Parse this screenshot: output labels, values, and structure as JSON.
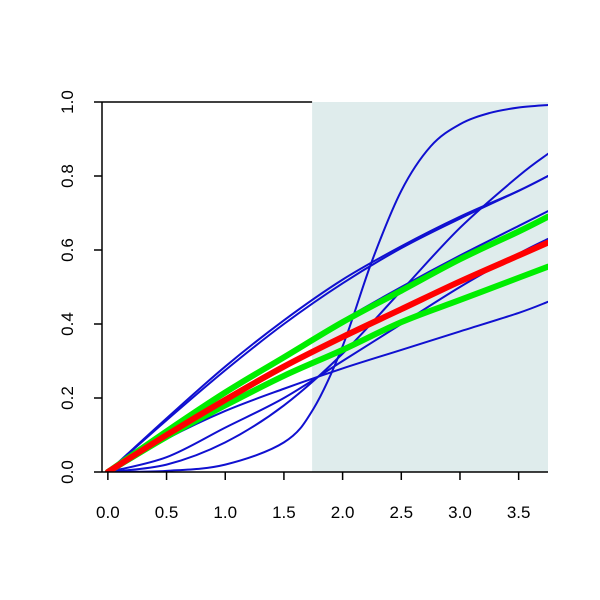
{
  "chart_data": {
    "type": "line",
    "title": "",
    "xlabel": "",
    "ylabel": "",
    "xlim": [
      -0.05,
      3.75
    ],
    "ylim": [
      0,
      1
    ],
    "x_ticks": [
      0.0,
      0.5,
      1.0,
      1.5,
      2.0,
      2.5,
      3.0,
      3.5
    ],
    "x_tick_labels": [
      "0.0",
      "0.5",
      "1.0",
      "1.5",
      "2.0",
      "2.5",
      "3.0",
      "3.5"
    ],
    "y_ticks": [
      0.0,
      0.2,
      0.4,
      0.6,
      0.8,
      1.0
    ],
    "y_tick_labels": [
      "0.0",
      "0.2",
      "0.4",
      "0.6",
      "0.8",
      "1.0"
    ],
    "grid": false,
    "legend": "none",
    "shaded_region": {
      "x_from": 1.74,
      "x_to": 3.75,
      "y_from": 0,
      "y_to": 1,
      "color": "#dfecec"
    },
    "series": [
      {
        "color": "#1010d0",
        "width": 2,
        "x": [
          0,
          0.5,
          1.0,
          1.5,
          1.75,
          2.0,
          2.25,
          2.5,
          2.75,
          3.0,
          3.25,
          3.5,
          3.75
        ],
        "y": [
          0,
          0.003,
          0.02,
          0.08,
          0.17,
          0.34,
          0.57,
          0.76,
          0.88,
          0.94,
          0.97,
          0.985,
          0.992
        ]
      },
      {
        "color": "#1010d0",
        "width": 2,
        "x": [
          0,
          0.5,
          1.0,
          1.5,
          2.0,
          2.5,
          3.0,
          3.5,
          3.75
        ],
        "y": [
          0,
          0.02,
          0.08,
          0.18,
          0.32,
          0.49,
          0.66,
          0.8,
          0.86
        ]
      },
      {
        "color": "#1010d0",
        "width": 2,
        "x": [
          0,
          0.5,
          1.0,
          1.5,
          2.0,
          2.5,
          3.0,
          3.5,
          3.75
        ],
        "y": [
          0,
          0.145,
          0.285,
          0.41,
          0.52,
          0.61,
          0.69,
          0.76,
          0.8
        ]
      },
      {
        "color": "#1010d0",
        "width": 2,
        "x": [
          0,
          0.5,
          1.0,
          1.5,
          2.0,
          2.5,
          3.0,
          3.5,
          3.75
        ],
        "y": [
          0,
          0.14,
          0.275,
          0.4,
          0.51,
          0.605,
          0.685,
          0.76,
          0.8
        ]
      },
      {
        "color": "#1010d0",
        "width": 2,
        "x": [
          0,
          0.5,
          1.0,
          1.5,
          2.0,
          2.5,
          3.0,
          3.5,
          3.75
        ],
        "y": [
          0,
          0.11,
          0.215,
          0.315,
          0.41,
          0.5,
          0.585,
          0.665,
          0.705
        ]
      },
      {
        "color": "#1010d0",
        "width": 2,
        "x": [
          0,
          0.5,
          1.0,
          1.5,
          2.0,
          2.5,
          3.0,
          3.5,
          3.75
        ],
        "y": [
          0,
          0.09,
          0.165,
          0.225,
          0.28,
          0.33,
          0.38,
          0.43,
          0.46
        ]
      },
      {
        "color": "#1010d0",
        "width": 2,
        "x": [
          0,
          0.5,
          1.0,
          1.5,
          2.0,
          2.5,
          3.0,
          3.5,
          3.75
        ],
        "y": [
          0,
          0.04,
          0.12,
          0.2,
          0.3,
          0.4,
          0.5,
          0.59,
          0.63
        ]
      },
      {
        "color": "#00ee00",
        "width": 6,
        "x": [
          0,
          0.5,
          1.0,
          1.5,
          2.0,
          2.5,
          3.0,
          3.5,
          3.75
        ],
        "y": [
          0,
          0.11,
          0.215,
          0.31,
          0.405,
          0.49,
          0.575,
          0.65,
          0.69
        ]
      },
      {
        "color": "#00ee00",
        "width": 6,
        "x": [
          0,
          0.5,
          1.0,
          1.5,
          2.0,
          2.5,
          3.0,
          3.5,
          3.75
        ],
        "y": [
          0,
          0.095,
          0.18,
          0.26,
          0.33,
          0.405,
          0.465,
          0.525,
          0.555
        ]
      },
      {
        "color": "#ff0000",
        "width": 6,
        "x": [
          0,
          0.5,
          1.0,
          1.5,
          2.0,
          2.5,
          3.0,
          3.5,
          3.75
        ],
        "y": [
          0,
          0.1,
          0.195,
          0.285,
          0.365,
          0.44,
          0.515,
          0.585,
          0.62
        ]
      }
    ]
  }
}
